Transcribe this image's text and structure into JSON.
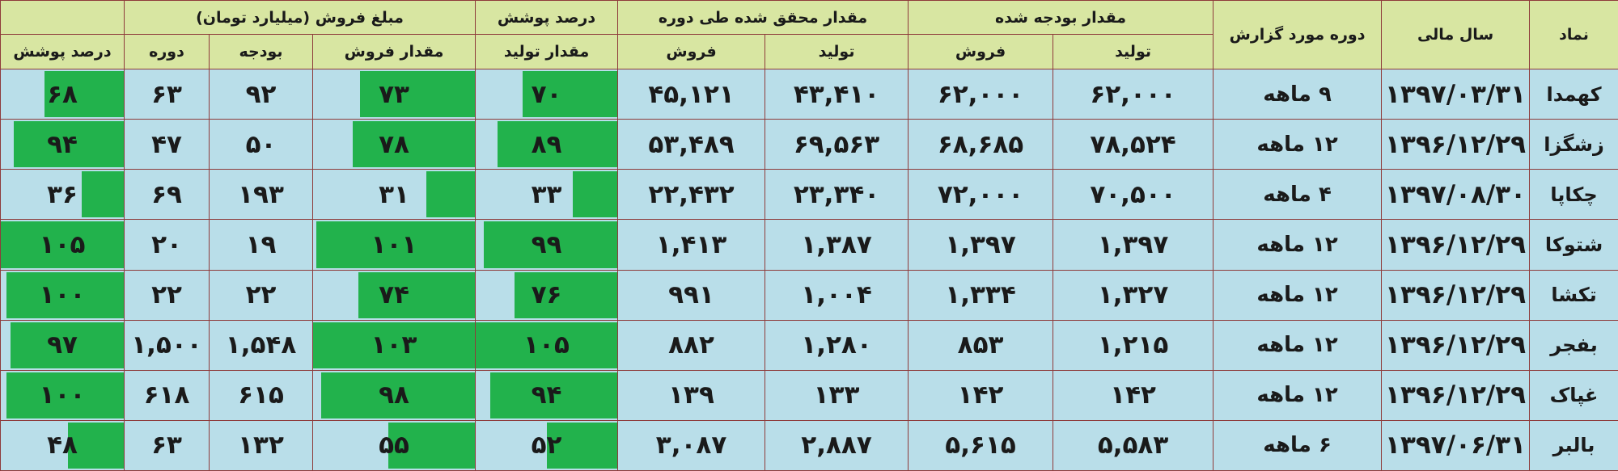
{
  "header": {
    "groups": [
      "نماد",
      "سال مالی",
      "دوره مورد گزارش",
      "مقدار بودجه شده",
      "مقدار محقق شده طی دوره",
      "درصد پوشش",
      "مبلغ فروش (میلیارد تومان)"
    ],
    "subheaders": [
      "تولید",
      "فروش",
      "تولید",
      "فروش",
      "مقدار تولید",
      "مقدار فروش",
      "بودجه",
      "دوره",
      "درصد پوشش"
    ]
  },
  "table": {
    "rows": [
      [
        "کهمدا",
        "۱۳۹۷/۰۳/۳۱",
        "۹ ماهه",
        "۶۲,۰۰۰",
        "۶۲,۰۰۰",
        "۴۳,۴۱۰",
        "۴۵,۱۲۱",
        "۷۰",
        "۷۳",
        "۹۲",
        "۶۳",
        "۶۸"
      ],
      [
        "زشگزا",
        "۱۳۹۶/۱۲/۲۹",
        "۱۲ ماهه",
        "۷۸,۵۲۴",
        "۶۸,۶۸۵",
        "۶۹,۵۶۳",
        "۵۳,۴۸۹",
        "۸۹",
        "۷۸",
        "۵۰",
        "۴۷",
        "۹۴"
      ],
      [
        "چکاپا",
        "۱۳۹۷/۰۸/۳۰",
        "۴ ماهه",
        "۷۰,۵۰۰",
        "۷۲,۰۰۰",
        "۲۳,۳۴۰",
        "۲۲,۴۳۲",
        "۳۳",
        "۳۱",
        "۱۹۳",
        "۶۹",
        "۳۶"
      ],
      [
        "شتوکا",
        "۱۳۹۶/۱۲/۲۹",
        "۱۲ ماهه",
        "۱,۳۹۷",
        "۱,۳۹۷",
        "۱,۳۸۷",
        "۱,۴۱۳",
        "۹۹",
        "۱۰۱",
        "۱۹",
        "۲۰",
        "۱۰۵"
      ],
      [
        "تکشا",
        "۱۳۹۶/۱۲/۲۹",
        "۱۲ ماهه",
        "۱,۳۲۷",
        "۱,۳۳۴",
        "۱,۰۰۴",
        "۹۹۱",
        "۷۶",
        "۷۴",
        "۲۲",
        "۲۲",
        "۱۰۰"
      ],
      [
        "بفجر",
        "۱۳۹۶/۱۲/۲۹",
        "۱۲ ماهه",
        "۱,۲۱۵",
        "۸۵۳",
        "۱,۲۸۰",
        "۸۸۲",
        "۱۰۵",
        "۱۰۳",
        "۱,۵۴۸",
        "۱,۵۰۰",
        "۹۷"
      ],
      [
        "غپاک",
        "۱۳۹۶/۱۲/۲۹",
        "۱۲ ماهه",
        "۱۴۲",
        "۱۴۲",
        "۱۳۳",
        "۱۳۹",
        "۹۴",
        "۹۸",
        "۶۱۵",
        "۶۱۸",
        "۱۰۰"
      ],
      [
        "بالبر",
        "۱۳۹۷/۰۶/۳۱",
        "۶ ماهه",
        "۵,۵۸۳",
        "۵,۶۱۵",
        "۲,۸۸۷",
        "۳,۰۸۷",
        "۵۲",
        "۵۵",
        "۱۳۲",
        "۶۳",
        "۴۸"
      ]
    ]
  }
}
